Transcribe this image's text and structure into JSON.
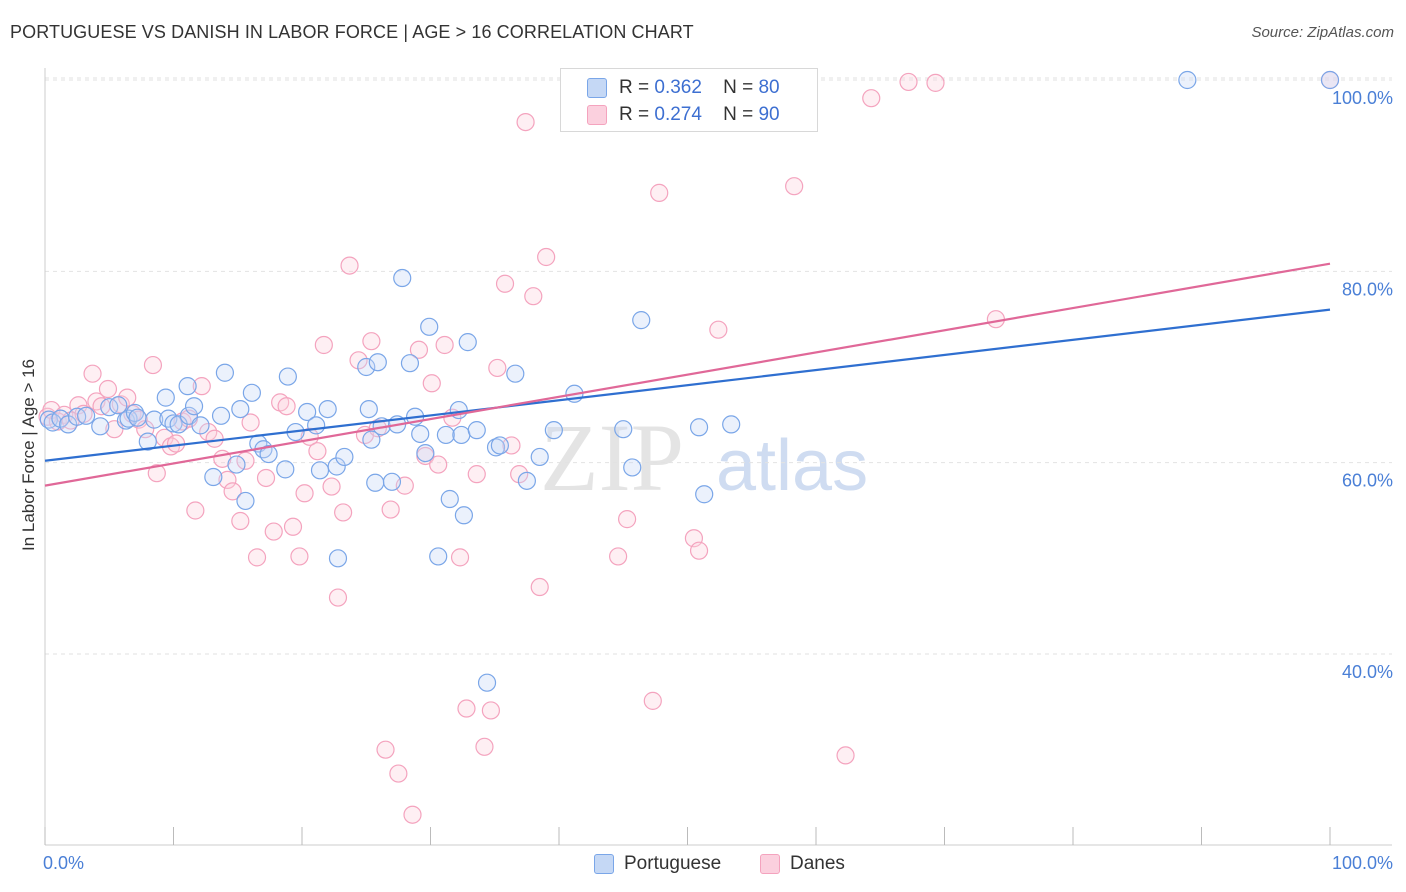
{
  "title": "PORTUGUESE VS DANISH IN LABOR FORCE | AGE > 16 CORRELATION CHART",
  "source": "Source: ZipAtlas.com",
  "watermark": {
    "zip": "ZIP",
    "atlas": "atlas"
  },
  "legend": [
    {
      "r_label": "R =",
      "r_value": "0.362",
      "n_label": "N =",
      "n_value": "80"
    },
    {
      "r_label": "R =",
      "r_value": "0.274",
      "n_label": "N =",
      "n_value": "90"
    }
  ],
  "chart_data": {
    "type": "scatter",
    "title": "PORTUGUESE VS DANISH IN LABOR FORCE | AGE > 16 CORRELATION CHART",
    "xlabel": "",
    "ylabel": "In Labor Force | Age > 16",
    "xlim": [
      0,
      100
    ],
    "ylim": [
      20,
      101
    ],
    "x_tick_labels": [
      "0.0%",
      "100.0%"
    ],
    "y_tick_labels": [
      "40.0%",
      "60.0%",
      "80.0%",
      "100.0%"
    ],
    "y_ticks": [
      40,
      60,
      80,
      100
    ],
    "grid": true,
    "legend_position": "top-center",
    "series": [
      {
        "name": "Portuguese",
        "color": "#7aa6e8",
        "line_color": "#2f6fd0",
        "trend": {
          "x": [
            0,
            100
          ],
          "y": [
            60.2,
            76.0
          ]
        },
        "points": [
          [
            0.3,
            64.5
          ],
          [
            0.6,
            64.2
          ],
          [
            1.2,
            64.6
          ],
          [
            1.8,
            64.0
          ],
          [
            2.5,
            64.8
          ],
          [
            3.2,
            64.9
          ],
          [
            4.3,
            63.8
          ],
          [
            5.0,
            65.8
          ],
          [
            5.7,
            66.0
          ],
          [
            6.3,
            64.4
          ],
          [
            6.5,
            64.6
          ],
          [
            7.0,
            65.2
          ],
          [
            7.2,
            64.7
          ],
          [
            8.0,
            62.2
          ],
          [
            8.5,
            64.5
          ],
          [
            9.4,
            66.8
          ],
          [
            9.6,
            64.6
          ],
          [
            10.0,
            64.1
          ],
          [
            10.4,
            64.0
          ],
          [
            11.1,
            68.0
          ],
          [
            11.2,
            64.9
          ],
          [
            11.6,
            65.9
          ],
          [
            12.1,
            63.9
          ],
          [
            13.1,
            58.5
          ],
          [
            13.7,
            64.9
          ],
          [
            14.0,
            69.4
          ],
          [
            14.9,
            59.8
          ],
          [
            15.2,
            65.6
          ],
          [
            15.6,
            56.0
          ],
          [
            16.1,
            67.3
          ],
          [
            16.6,
            62.0
          ],
          [
            17.0,
            61.4
          ],
          [
            17.4,
            60.9
          ],
          [
            18.7,
            59.3
          ],
          [
            18.9,
            69.0
          ],
          [
            19.5,
            63.2
          ],
          [
            20.4,
            65.3
          ],
          [
            21.1,
            63.9
          ],
          [
            21.4,
            59.2
          ],
          [
            22.0,
            65.6
          ],
          [
            22.7,
            59.6
          ],
          [
            22.8,
            50.0
          ],
          [
            23.3,
            60.6
          ],
          [
            25.0,
            70.0
          ],
          [
            25.2,
            65.6
          ],
          [
            25.4,
            62.4
          ],
          [
            25.7,
            57.9
          ],
          [
            25.9,
            70.5
          ],
          [
            26.2,
            63.8
          ],
          [
            27.0,
            58.0
          ],
          [
            27.4,
            64.0
          ],
          [
            27.8,
            79.3
          ],
          [
            28.4,
            70.4
          ],
          [
            28.8,
            64.8
          ],
          [
            29.2,
            63.0
          ],
          [
            29.6,
            61.0
          ],
          [
            29.9,
            74.2
          ],
          [
            30.6,
            50.2
          ],
          [
            31.2,
            62.9
          ],
          [
            31.5,
            56.2
          ],
          [
            32.2,
            65.5
          ],
          [
            32.4,
            62.9
          ],
          [
            32.6,
            54.5
          ],
          [
            32.9,
            72.6
          ],
          [
            33.6,
            63.4
          ],
          [
            34.4,
            37.0
          ],
          [
            35.1,
            61.6
          ],
          [
            35.4,
            61.8
          ],
          [
            36.6,
            69.3
          ],
          [
            37.5,
            58.1
          ],
          [
            38.5,
            60.6
          ],
          [
            39.6,
            63.4
          ],
          [
            41.2,
            67.2
          ],
          [
            45.0,
            63.5
          ],
          [
            45.7,
            59.5
          ],
          [
            46.4,
            74.9
          ],
          [
            50.9,
            63.7
          ],
          [
            51.3,
            56.7
          ],
          [
            53.4,
            64.0
          ],
          [
            88.9,
            100.0
          ],
          [
            100.0,
            100.0
          ]
        ]
      },
      {
        "name": "Danes",
        "color": "#f4a3be",
        "line_color": "#e06898",
        "trend": {
          "x": [
            0,
            100
          ],
          "y": [
            57.6,
            80.8
          ]
        },
        "points": [
          [
            0.2,
            64.8
          ],
          [
            0.5,
            65.5
          ],
          [
            1.0,
            64.3
          ],
          [
            1.5,
            65.0
          ],
          [
            2.0,
            64.4
          ],
          [
            2.6,
            66.0
          ],
          [
            3.0,
            65.1
          ],
          [
            3.7,
            69.3
          ],
          [
            4.0,
            66.4
          ],
          [
            4.4,
            65.9
          ],
          [
            4.9,
            67.7
          ],
          [
            5.4,
            63.5
          ],
          [
            5.9,
            66.1
          ],
          [
            6.4,
            66.8
          ],
          [
            6.8,
            65.1
          ],
          [
            7.3,
            64.5
          ],
          [
            7.8,
            63.5
          ],
          [
            8.4,
            70.2
          ],
          [
            8.7,
            58.9
          ],
          [
            9.3,
            62.6
          ],
          [
            9.8,
            61.7
          ],
          [
            10.2,
            62.0
          ],
          [
            10.7,
            64.3
          ],
          [
            11.2,
            64.6
          ],
          [
            11.7,
            55.0
          ],
          [
            12.2,
            68.0
          ],
          [
            12.7,
            63.2
          ],
          [
            13.2,
            62.5
          ],
          [
            13.8,
            60.4
          ],
          [
            14.2,
            58.2
          ],
          [
            14.6,
            57.0
          ],
          [
            15.2,
            53.9
          ],
          [
            15.6,
            60.2
          ],
          [
            16.0,
            64.2
          ],
          [
            16.5,
            50.1
          ],
          [
            17.2,
            58.4
          ],
          [
            17.8,
            52.8
          ],
          [
            18.3,
            66.3
          ],
          [
            18.8,
            65.9
          ],
          [
            19.3,
            53.3
          ],
          [
            19.8,
            50.2
          ],
          [
            20.2,
            56.8
          ],
          [
            20.6,
            62.7
          ],
          [
            21.2,
            61.2
          ],
          [
            21.7,
            72.3
          ],
          [
            22.3,
            57.5
          ],
          [
            22.8,
            45.9
          ],
          [
            23.2,
            54.8
          ],
          [
            23.7,
            80.6
          ],
          [
            24.4,
            70.7
          ],
          [
            24.9,
            62.9
          ],
          [
            25.4,
            72.7
          ],
          [
            25.9,
            63.6
          ],
          [
            26.5,
            30.0
          ],
          [
            26.9,
            55.1
          ],
          [
            27.5,
            27.5
          ],
          [
            28.0,
            57.6
          ],
          [
            28.6,
            23.2
          ],
          [
            29.1,
            71.8
          ],
          [
            29.6,
            60.7
          ],
          [
            30.1,
            68.3
          ],
          [
            30.6,
            59.8
          ],
          [
            31.1,
            72.3
          ],
          [
            31.7,
            64.7
          ],
          [
            32.3,
            50.1
          ],
          [
            32.8,
            34.3
          ],
          [
            33.6,
            58.8
          ],
          [
            34.2,
            30.3
          ],
          [
            34.7,
            34.1
          ],
          [
            35.2,
            69.9
          ],
          [
            35.8,
            78.7
          ],
          [
            36.3,
            61.8
          ],
          [
            36.9,
            58.8
          ],
          [
            37.4,
            95.6
          ],
          [
            38.0,
            77.4
          ],
          [
            38.5,
            47.0
          ],
          [
            39.0,
            81.5
          ],
          [
            44.6,
            50.2
          ],
          [
            45.3,
            54.1
          ],
          [
            47.3,
            35.1
          ],
          [
            47.8,
            88.2
          ],
          [
            50.5,
            52.1
          ],
          [
            50.9,
            50.8
          ],
          [
            52.4,
            73.9
          ],
          [
            58.3,
            88.9
          ],
          [
            62.3,
            29.4
          ],
          [
            64.3,
            98.1
          ],
          [
            67.2,
            99.8
          ],
          [
            69.3,
            99.7
          ],
          [
            74.0,
            75.0
          ],
          [
            100.0,
            100.0
          ]
        ]
      }
    ]
  },
  "bottom_legend": [
    "Portuguese",
    "Danes"
  ]
}
